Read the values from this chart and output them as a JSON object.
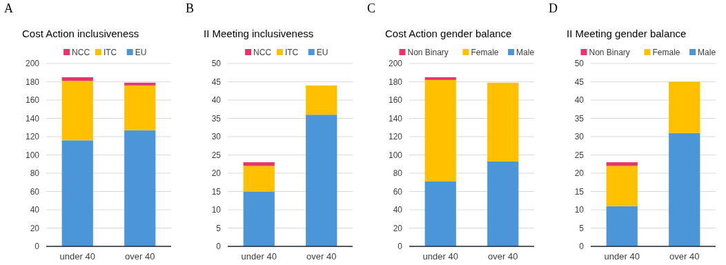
{
  "chart_data": [
    {
      "type": "bar",
      "stacked": true,
      "title": "Cost Action inclusiveness",
      "annotations": [
        "A"
      ],
      "categories": [
        "under 40",
        "over 40"
      ],
      "series": [
        {
          "name": "EU",
          "color": "#4a96d9",
          "values": [
            116,
            127
          ]
        },
        {
          "name": "ITC",
          "color": "#ffc000",
          "values": [
            65,
            49
          ]
        },
        {
          "name": "NCC",
          "color": "#e8336b",
          "values": [
            4,
            3
          ]
        }
      ],
      "ylim": [
        0,
        200
      ],
      "yticks": [
        0,
        20,
        40,
        60,
        80,
        100,
        120,
        140,
        160,
        180,
        200
      ],
      "grid": "y",
      "legend": "top"
    },
    {
      "type": "bar",
      "stacked": true,
      "title": "II Meeting inclusiveness",
      "annotations": [
        "B"
      ],
      "categories": [
        "under 40",
        "over 40"
      ],
      "series": [
        {
          "name": "EU",
          "color": "#4a96d9",
          "values": [
            15,
            36
          ]
        },
        {
          "name": "ITC",
          "color": "#ffc000",
          "values": [
            7,
            8
          ]
        },
        {
          "name": "NCC",
          "color": "#e8336b",
          "values": [
            1,
            0
          ]
        }
      ],
      "ylim": [
        0,
        50
      ],
      "yticks": [
        0,
        5,
        10,
        15,
        20,
        25,
        30,
        35,
        40,
        45,
        50
      ],
      "grid": "y",
      "legend": "top"
    },
    {
      "type": "bar",
      "stacked": true,
      "title": "Cost Action gender balance",
      "annotations": [
        "C"
      ],
      "categories": [
        "under 40",
        "over 40"
      ],
      "series": [
        {
          "name": "Male",
          "color": "#4a96d9",
          "values": [
            71,
            93
          ]
        },
        {
          "name": "Female",
          "color": "#ffc000",
          "values": [
            111,
            86
          ]
        },
        {
          "name": "Non Binary",
          "color": "#e8336b",
          "values": [
            3,
            0
          ]
        }
      ],
      "ylim": [
        0,
        200
      ],
      "yticks": [
        0,
        20,
        40,
        60,
        80,
        100,
        120,
        140,
        160,
        180,
        200
      ],
      "grid": "y",
      "legend": "top"
    },
    {
      "type": "bar",
      "stacked": true,
      "title": "II Meeting gender balance",
      "annotations": [
        "D"
      ],
      "categories": [
        "under 40",
        "over 40"
      ],
      "series": [
        {
          "name": "Male",
          "color": "#4a96d9",
          "values": [
            11,
            31
          ]
        },
        {
          "name": "Female",
          "color": "#ffc000",
          "values": [
            11,
            14
          ]
        },
        {
          "name": "Non Binary",
          "color": "#e8336b",
          "values": [
            1,
            0
          ]
        }
      ],
      "ylim": [
        0,
        50
      ],
      "yticks": [
        0,
        5,
        10,
        15,
        20,
        25,
        30,
        35,
        40,
        45,
        50
      ],
      "grid": "y",
      "legend": "top"
    }
  ]
}
